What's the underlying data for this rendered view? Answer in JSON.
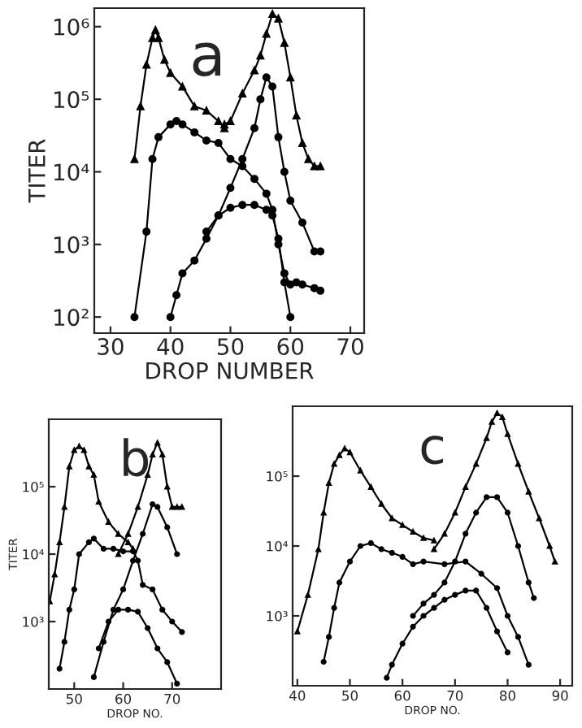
{
  "chart_data": [
    {
      "type": "line",
      "xlabel": "DROP NUMBER",
      "ylabel": "TITER",
      "annotations": [
        "a"
      ],
      "log": "y",
      "xlim": [
        27.3,
        72.3
      ],
      "ylim": [
        60,
        1800000
      ],
      "xticks": [
        30,
        40,
        50,
        60,
        70
      ],
      "yticks": [
        {
          "value": 100,
          "label": "10²"
        },
        {
          "value": 1000,
          "label": "10³"
        },
        {
          "value": 10000,
          "label": "10⁴"
        },
        {
          "value": 100000,
          "label": "10⁵"
        },
        {
          "value": 1000000,
          "label": "10⁶"
        }
      ],
      "grid": false,
      "legend": false,
      "series": [
        {
          "color": "#000000",
          "marker": "triangle",
          "x": [
            34,
            35,
            36,
            37,
            37.5,
            38,
            39,
            40,
            42,
            44,
            46,
            48,
            49
          ],
          "values": [
            15000,
            80000,
            300000,
            700000,
            900000,
            700000,
            350000,
            230000,
            150000,
            80000,
            70000,
            50000,
            40000
          ]
        },
        {
          "color": "#000000",
          "marker": "triangle",
          "x": [
            49,
            50,
            52,
            54,
            55,
            56,
            57,
            58,
            59,
            60,
            61,
            62,
            63,
            64,
            65
          ],
          "values": [
            45000,
            50000,
            120000,
            250000,
            400000,
            800000,
            1500000,
            1300000,
            600000,
            200000,
            60000,
            25000,
            15000,
            12000,
            12000
          ]
        },
        {
          "color": "#000000",
          "marker": "circle",
          "x": [
            34,
            36,
            37,
            38,
            40,
            41,
            42,
            44,
            46,
            48,
            50,
            52,
            54,
            56,
            57,
            58,
            59,
            60,
            61,
            62,
            64,
            65
          ],
          "values": [
            100,
            1500,
            15000,
            30000,
            45000,
            50000,
            45000,
            35000,
            27000,
            25000,
            15000,
            12000,
            8000,
            5000,
            3000,
            1000,
            400,
            280,
            300,
            280,
            250,
            230
          ]
        },
        {
          "color": "#000000",
          "marker": "circle",
          "x": [
            40,
            41,
            42,
            44,
            46,
            48,
            50,
            52,
            54,
            55,
            56,
            57,
            58,
            59,
            60,
            62,
            64,
            65
          ],
          "values": [
            100,
            200,
            400,
            600,
            1200,
            2500,
            6000,
            15000,
            40000,
            100000,
            200000,
            150000,
            30000,
            10000,
            4000,
            2000,
            800,
            800
          ]
        },
        {
          "color": "#000000",
          "marker": "circle",
          "x": [
            46,
            48,
            50,
            52,
            54,
            56,
            57,
            58,
            59,
            60
          ],
          "values": [
            1500,
            2500,
            3200,
            3500,
            3500,
            3000,
            2500,
            1200,
            300,
            100
          ]
        }
      ]
    },
    {
      "type": "line",
      "xlabel": "DROP NO.",
      "ylabel": "TITER",
      "annotations": [
        "b"
      ],
      "log": "y",
      "xlim": [
        44.8,
        80
      ],
      "ylim": [
        100,
        1000000
      ],
      "xticks": [
        50,
        60,
        70
      ],
      "yticks": [
        {
          "value": 1000,
          "label": "10³"
        },
        {
          "value": 10000,
          "label": "10⁴"
        },
        {
          "value": 100000,
          "label": "10⁵"
        }
      ],
      "grid": false,
      "legend": false,
      "series": [
        {
          "color": "#000000",
          "marker": "triangle",
          "x": [
            45,
            46,
            47,
            48,
            49,
            50,
            51,
            52,
            53,
            54,
            55,
            57,
            59,
            61,
            62
          ],
          "values": [
            2000,
            5000,
            15000,
            50000,
            200000,
            350000,
            400000,
            350000,
            200000,
            150000,
            60000,
            30000,
            20000,
            15000,
            12000
          ]
        },
        {
          "color": "#000000",
          "marker": "triangle",
          "x": [
            59,
            61,
            63,
            65,
            66,
            67,
            68,
            69,
            70,
            71,
            72
          ],
          "values": [
            10000,
            20000,
            50000,
            150000,
            300000,
            450000,
            300000,
            100000,
            50000,
            50000,
            50000
          ]
        },
        {
          "color": "#000000",
          "marker": "circle",
          "x": [
            47,
            48,
            49,
            50,
            51,
            53,
            54,
            56,
            58,
            60,
            62,
            63,
            64,
            66,
            68,
            70,
            72
          ],
          "values": [
            200,
            500,
            1500,
            3000,
            10000,
            15000,
            17000,
            12000,
            12000,
            11000,
            11000,
            8000,
            3500,
            3000,
            1500,
            1000,
            700
          ]
        },
        {
          "color": "#000000",
          "marker": "circle",
          "x": [
            54,
            56,
            58,
            60,
            62,
            64,
            66,
            67,
            69,
            71
          ],
          "values": [
            150,
            500,
            1500,
            3000,
            8000,
            20000,
            55000,
            50000,
            25000,
            10000
          ]
        },
        {
          "color": "#000000",
          "marker": "circle",
          "x": [
            55,
            57,
            59,
            61,
            63,
            65,
            67,
            69,
            71
          ],
          "values": [
            400,
            1000,
            1500,
            1500,
            1400,
            800,
            400,
            250,
            120
          ]
        }
      ]
    },
    {
      "type": "line",
      "xlabel": "DROP NO.",
      "annotations": [
        "c"
      ],
      "log": "y",
      "xlim": [
        39.1,
        92.3
      ],
      "ylim": [
        100,
        1000000
      ],
      "xticks": [
        40,
        50,
        60,
        70,
        80,
        90
      ],
      "yticks": [
        {
          "value": 1000,
          "label": "10³"
        },
        {
          "value": 10000,
          "label": "10⁴"
        },
        {
          "value": 100000,
          "label": "10⁵"
        }
      ],
      "grid": false,
      "legend": false,
      "series": [
        {
          "color": "#000000",
          "marker": "triangle",
          "x": [
            40,
            42,
            44,
            45,
            46,
            47,
            48,
            49,
            50,
            52,
            54,
            56,
            58,
            60,
            62,
            64,
            66
          ],
          "values": [
            600,
            2000,
            9000,
            30000,
            80000,
            150000,
            200000,
            250000,
            220000,
            120000,
            70000,
            40000,
            25000,
            20000,
            16000,
            13000,
            12000
          ]
        },
        {
          "color": "#000000",
          "marker": "triangle",
          "x": [
            66,
            68,
            70,
            72,
            74,
            76,
            77,
            78,
            79,
            80,
            82,
            84,
            86,
            88,
            89
          ],
          "values": [
            9000,
            15000,
            30000,
            70000,
            150000,
            350000,
            600000,
            800000,
            700000,
            400000,
            150000,
            60000,
            25000,
            10000,
            6000
          ]
        },
        {
          "color": "#000000",
          "marker": "circle",
          "x": [
            45,
            46,
            47,
            48,
            50,
            52,
            54,
            56,
            58,
            60,
            62,
            64,
            68,
            72,
            75,
            78,
            80,
            82,
            84
          ],
          "values": [
            220,
            500,
            1300,
            3000,
            6000,
            10000,
            11000,
            9000,
            8000,
            7000,
            5500,
            6000,
            5500,
            6000,
            4000,
            2500,
            1000,
            500,
            200
          ]
        },
        {
          "color": "#000000",
          "marker": "circle",
          "x": [
            62,
            64,
            66,
            68,
            70,
            72,
            74,
            76,
            78,
            80,
            82,
            84,
            85
          ],
          "values": [
            1000,
            1500,
            2000,
            3000,
            6000,
            15000,
            30000,
            50000,
            50000,
            30000,
            10000,
            3000,
            1800
          ]
        },
        {
          "color": "#000000",
          "marker": "circle",
          "x": [
            57,
            58,
            60,
            62,
            64,
            66,
            68,
            70,
            72,
            74,
            76,
            78,
            80
          ],
          "values": [
            130,
            200,
            400,
            700,
            1000,
            1300,
            1700,
            2000,
            2300,
            2300,
            1300,
            600,
            300
          ]
        }
      ]
    }
  ]
}
